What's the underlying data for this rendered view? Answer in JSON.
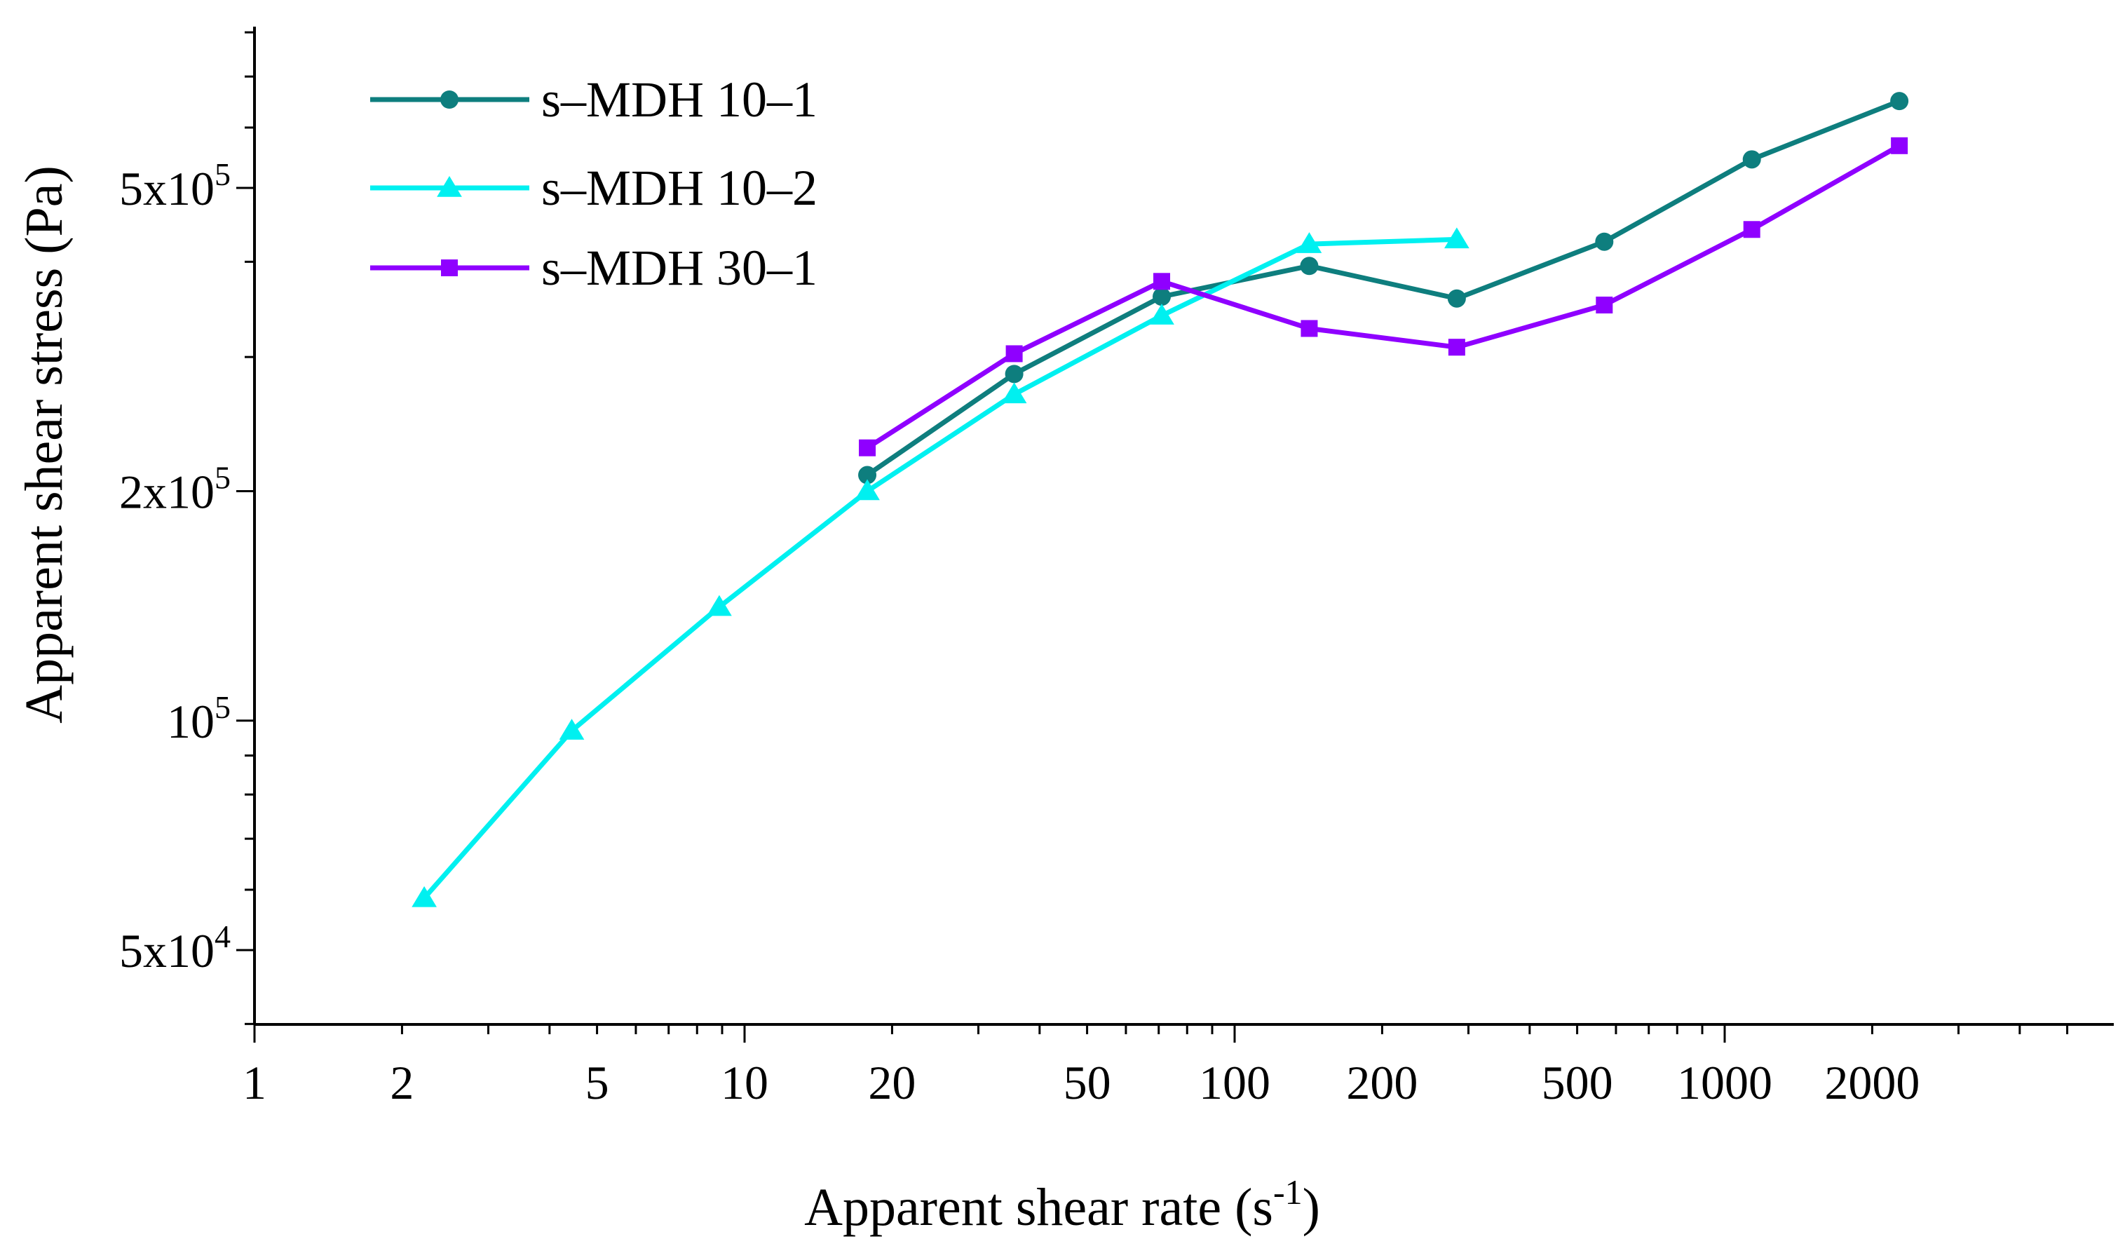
{
  "chart_data": {
    "type": "line",
    "xscale": "log",
    "yscale": "log",
    "xlabel": "Apparent shear rate (s",
    "xlabel_sup": "-1",
    "xlabel_end": ")",
    "ylabel": "Apparent shear stress (Pa)",
    "xlim": [
      1,
      5000
    ],
    "ylim": [
      40000,
      850000
    ],
    "xticks": [
      {
        "v": 1,
        "label": "1"
      },
      {
        "v": 2,
        "label": "2"
      },
      {
        "v": 5,
        "label": "5"
      },
      {
        "v": 10,
        "label": "10"
      },
      {
        "v": 20,
        "label": "20"
      },
      {
        "v": 50,
        "label": "50"
      },
      {
        "v": 100,
        "label": "100"
      },
      {
        "v": 200,
        "label": "200"
      },
      {
        "v": 500,
        "label": "500"
      },
      {
        "v": 1000,
        "label": "1000"
      },
      {
        "v": 2000,
        "label": "2000"
      }
    ],
    "yticks": [
      {
        "v": 50000,
        "mant": "5x10",
        "exp": "4"
      },
      {
        "v": 100000,
        "mant": "10",
        "exp": "5"
      },
      {
        "v": 200000,
        "mant": "2x10",
        "exp": "5"
      },
      {
        "v": 500000,
        "mant": "5x10",
        "exp": "5"
      }
    ],
    "legend_position": "top-left",
    "series": [
      {
        "name": "s–MDH 10–1",
        "color": "#0e7e7e",
        "marker": "circle",
        "x": [
          17.8,
          35.5,
          71,
          142,
          284,
          568,
          1136,
          2272
        ],
        "y": [
          210000,
          285000,
          360000,
          395000,
          358000,
          425000,
          545000,
          650000
        ]
      },
      {
        "name": "s–MDH 10–2",
        "color": "#00f0f0",
        "marker": "triangle",
        "x": [
          2.22,
          4.44,
          8.88,
          17.8,
          35.5,
          71,
          142,
          284
        ],
        "y": [
          58500,
          97000,
          141000,
          200000,
          268000,
          340000,
          422000,
          428000
        ]
      },
      {
        "name": "s–MDH 30–1",
        "color": "#8f00ff",
        "marker": "square",
        "x": [
          17.8,
          35.5,
          71,
          142,
          284,
          568,
          1136,
          2272
        ],
        "y": [
          228000,
          303000,
          377000,
          327000,
          309000,
          351000,
          441000,
          568000
        ]
      }
    ]
  }
}
